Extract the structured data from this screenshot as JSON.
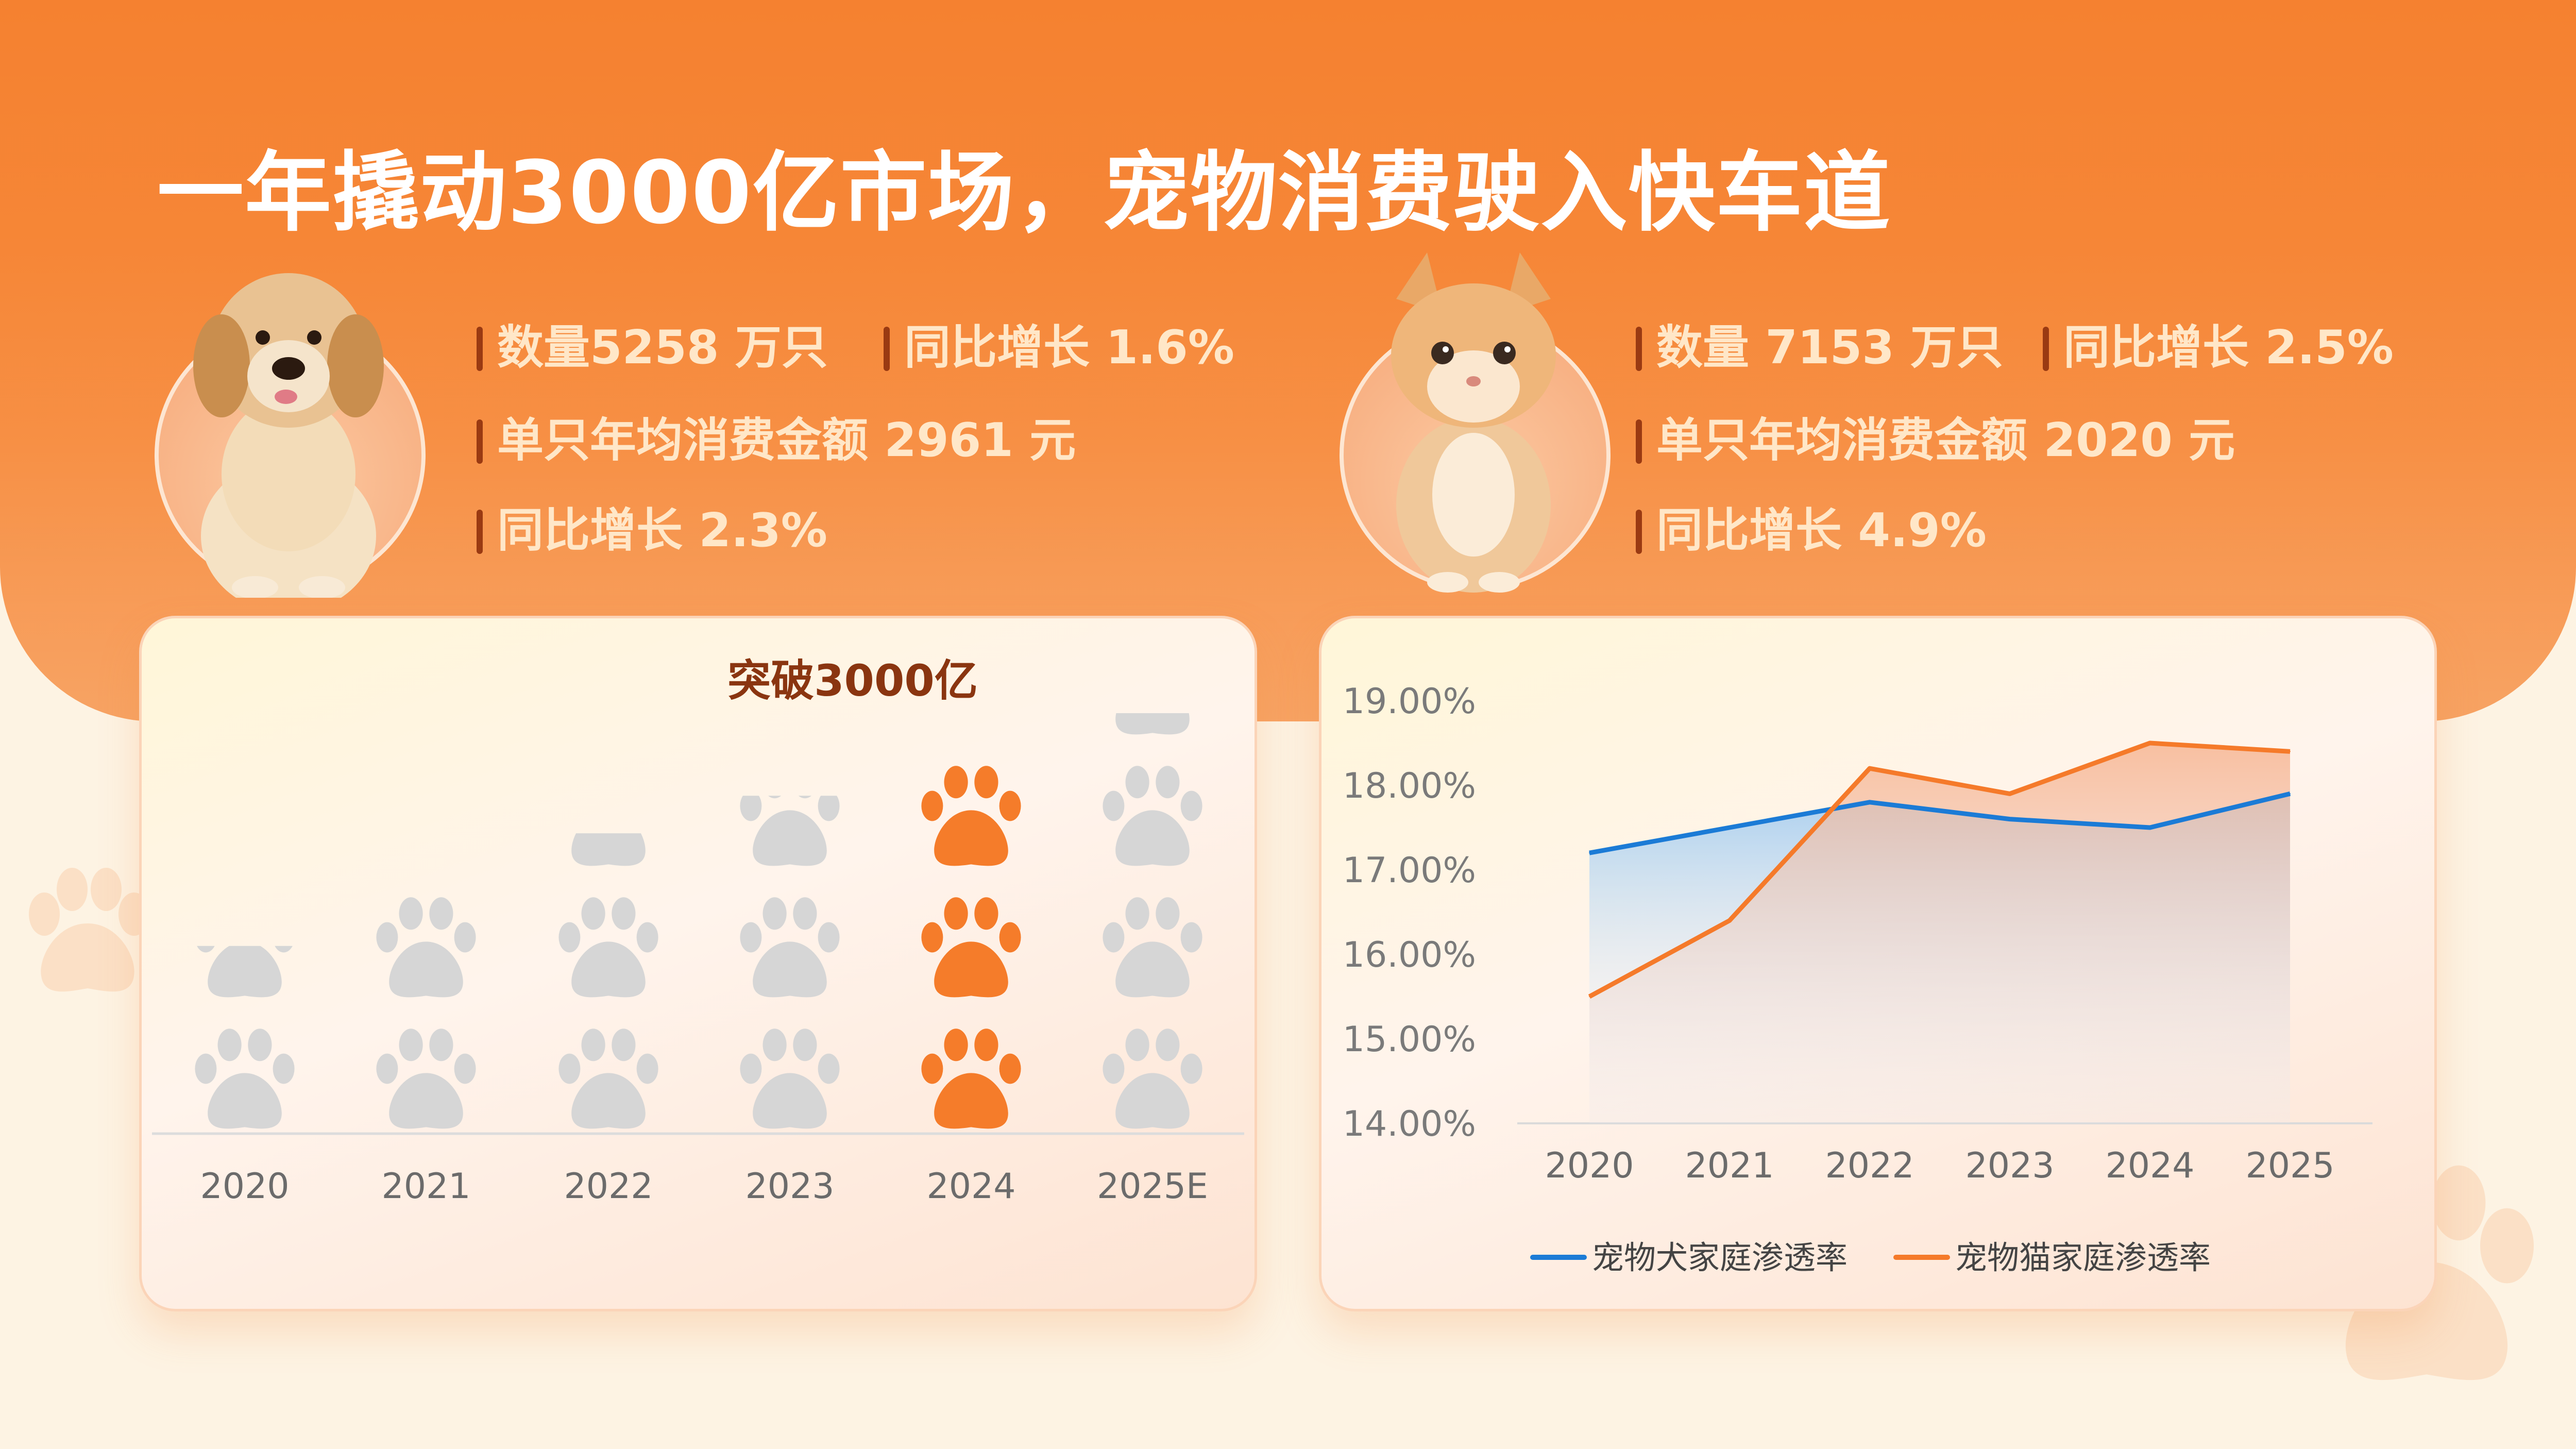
{
  "title": "一年撬动3000亿市场，宠物消费驶入快车道",
  "dog_stats": {
    "count": "数量5258 万只",
    "count_growth": "同比增长 1.6%",
    "spend": "单只年均消费金额 2961 元",
    "spend_growth": "同比增长 2.3%"
  },
  "cat_stats": {
    "count": "数量 7153 万只",
    "count_growth": "同比增长 2.5%",
    "spend": "单只年均消费金额 2020 元",
    "spend_growth": "同比增长 4.9%"
  },
  "icons": [
    "dog-photo",
    "cat-photo",
    "paw-icon"
  ],
  "colors": {
    "accent": "#f57c2a",
    "paw_gray": "#d6d6d6",
    "dog_series": "#1b7bd6",
    "cat_series": "#f57a2a",
    "annotation": "#8a3510"
  },
  "chart_data": [
    {
      "type": "bar",
      "title": "",
      "annotation": "突破3000亿",
      "categories": [
        "2020",
        "2021",
        "2022",
        "2023",
        "2024",
        "2025E"
      ],
      "values": [
        2.5,
        3.2,
        4.0,
        4.5,
        5.0,
        5.6
      ],
      "value_note": "heights shown as stacked paw icons (number of paws)",
      "highlight": "2024",
      "xlabel": "",
      "ylabel": ""
    },
    {
      "type": "area",
      "title": "",
      "categories": [
        "2020",
        "2021",
        "2022",
        "2023",
        "2024",
        "2025"
      ],
      "series": [
        {
          "name": "宠物犬家庭渗透率",
          "values": [
            17.2,
            17.5,
            17.8,
            17.6,
            17.5,
            17.9
          ]
        },
        {
          "name": "宠物猫家庭渗透率",
          "values": [
            15.5,
            16.4,
            18.2,
            17.9,
            18.5,
            18.4
          ]
        }
      ],
      "ylim": [
        14,
        19
      ],
      "yticks": [
        "14.00%",
        "15.00%",
        "16.00%",
        "17.00%",
        "18.00%",
        "19.00%"
      ],
      "legend": "bottom",
      "xlabel": "",
      "ylabel": ""
    }
  ]
}
